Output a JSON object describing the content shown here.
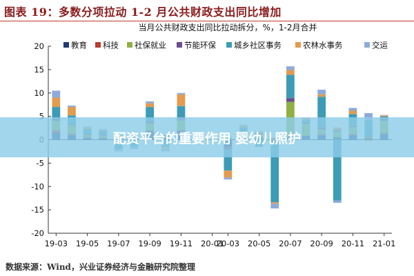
{
  "figure": {
    "title": "图表 19：多数分项拉动 1-2 月公共财政支出同比增加"
  },
  "source": "数据来源：Wind，兴业证券经济与金融研究院整理",
  "banner": {
    "text": "配资平台的重要作用 婴幼儿照护"
  },
  "chart_data": {
    "type": "bar",
    "stacked": true,
    "title": "当月公共财政支出同比拉动拆分，%，1-2月合并",
    "xlabel": "",
    "ylabel": "",
    "ylim": [
      -20,
      20
    ],
    "yticks": [
      -20,
      -15,
      -10,
      -5,
      0,
      5,
      10,
      15,
      20
    ],
    "xtick_labels": [
      "19-03",
      "19-05",
      "19-07",
      "19-09",
      "19-11",
      "20-01",
      "20-03",
      "20-05",
      "20-07",
      "20-09",
      "20-11",
      "21-01"
    ],
    "categories": [
      "19-03",
      "19-04",
      "19-05",
      "19-06",
      "19-07",
      "19-08",
      "19-09",
      "19-10",
      "19-11",
      "19-12",
      "20-01",
      "20-03",
      "20-04",
      "20-05",
      "20-06",
      "20-07",
      "20-08",
      "20-09",
      "20-10",
      "20-11",
      "20-12",
      "21-01"
    ],
    "grid": false,
    "legend": "top",
    "series": [
      {
        "name": "教育",
        "color": "#1f3a78",
        "values": [
          1.5,
          1.0,
          0.4,
          0.3,
          0.2,
          0.5,
          1.8,
          0.3,
          1.8,
          0,
          0,
          -1.5,
          0.4,
          0.3,
          -0.3,
          0.5,
          0.8,
          1.0,
          0.5,
          1.0,
          0.3,
          1.2
        ]
      },
      {
        "name": "科技",
        "color": "#c0392b",
        "values": [
          0.5,
          0.3,
          0.1,
          0.1,
          0.1,
          0.1,
          0.2,
          0.1,
          0.3,
          0,
          0,
          -0.3,
          0.1,
          0.1,
          -0.1,
          0.1,
          0.1,
          0.2,
          0.1,
          0.2,
          0.1,
          0.3
        ]
      },
      {
        "name": "社保就业",
        "color": "#8fb045",
        "values": [
          2.0,
          1.8,
          0.6,
          0.5,
          0.4,
          0.6,
          1.5,
          0.4,
          2.0,
          0,
          0,
          0.5,
          0.5,
          0.7,
          0.3,
          7.5,
          2.5,
          1.0,
          1.2,
          1.5,
          0.2,
          2.5
        ]
      },
      {
        "name": "节能环保",
        "color": "#6b4f8f",
        "values": [
          0.5,
          0.3,
          0.2,
          0.2,
          0.1,
          0.2,
          0.5,
          0.2,
          0.6,
          0,
          0,
          -0.3,
          0.1,
          0.2,
          0.1,
          0.8,
          0.3,
          0.5,
          0.3,
          0.3,
          0.1,
          0.5
        ]
      },
      {
        "name": "城乡社区事务",
        "color": "#3d9bb5",
        "values": [
          2.5,
          1.8,
          1.0,
          0.8,
          -2.0,
          -1.5,
          3.0,
          -1.5,
          2.5,
          0,
          0,
          -4.5,
          1.5,
          -1.5,
          -13.0,
          5.0,
          0.5,
          6.5,
          -13.0,
          2.5,
          3.5,
          0.5
        ]
      },
      {
        "name": "农林水事务",
        "color": "#e39b4e",
        "values": [
          2.0,
          1.8,
          0.3,
          0.2,
          0.2,
          0.1,
          0.8,
          -0.4,
          2.5,
          0,
          0,
          -1.5,
          0.4,
          0.3,
          -0.3,
          1.0,
          0.3,
          0.5,
          0.5,
          0.7,
          -0.3,
          0.2
        ]
      },
      {
        "name": "交运",
        "color": "#8eaadb",
        "values": [
          1.5,
          0.3,
          0.2,
          0.2,
          -0.5,
          -0.5,
          0.4,
          -0.6,
          0.3,
          0,
          0,
          -0.4,
          0.2,
          0.2,
          -1.0,
          0.8,
          0.2,
          1.0,
          -0.5,
          0.6,
          1.5,
          0.1
        ]
      }
    ]
  }
}
